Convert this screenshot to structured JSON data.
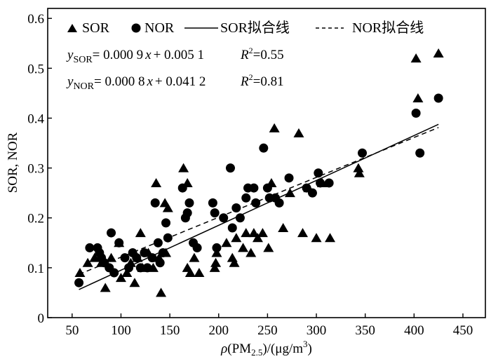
{
  "chart_data": {
    "type": "scatter",
    "title": "",
    "xlabel_parts": {
      "rho": "ρ",
      "open": "(PM",
      "sub": "2.5",
      "close": ")/(μg/m",
      "sup": "3",
      "end": ")"
    },
    "ylabel": "SOR, NOR",
    "xlim": [
      25,
      473
    ],
    "ylim": [
      0,
      0.62
    ],
    "x_ticks": [
      50,
      100,
      150,
      200,
      250,
      300,
      350,
      400,
      450
    ],
    "x_tick_labels": [
      "50",
      "100",
      "150",
      "200",
      "250",
      "300",
      "350",
      "400",
      "450"
    ],
    "y_ticks": [
      0,
      0.1,
      0.2,
      0.3,
      0.4,
      0.5,
      0.6
    ],
    "y_tick_labels": [
      "0",
      "0.1",
      "0.2",
      "0.3",
      "0.4",
      "0.5",
      "0.6"
    ],
    "grid": false,
    "legend": {
      "placement": "top",
      "entries": [
        {
          "label": "SOR",
          "marker": "triangle"
        },
        {
          "label": "NOR",
          "marker": "circle"
        },
        {
          "label": "SOR拟合线",
          "line": "solid"
        },
        {
          "label": "NOR拟合线",
          "line": "dashed"
        }
      ]
    },
    "annotations": [
      {
        "y": "y",
        "sub": "SOR",
        "rhs": "= 0.000 9",
        "x": "x",
        "tail": "+ 0.005 1",
        "r": "R",
        "r2sup": "2",
        "r2val": "=0.55"
      },
      {
        "y": "y",
        "sub": "NOR",
        "rhs": "= 0.000 8",
        "x": "x",
        "tail": "+ 0.041 2",
        "r": "R",
        "r2sup": "2",
        "r2val": "=0.81"
      }
    ],
    "series": [
      {
        "name": "SOR",
        "marker": "triangle",
        "points": [
          [
            58,
            0.09
          ],
          [
            66,
            0.11
          ],
          [
            73,
            0.12
          ],
          [
            80,
            0.11
          ],
          [
            84,
            0.06
          ],
          [
            90,
            0.12
          ],
          [
            98,
            0.15
          ],
          [
            100,
            0.08
          ],
          [
            106,
            0.09
          ],
          [
            110,
            0.11
          ],
          [
            114,
            0.07
          ],
          [
            117,
            0.12
          ],
          [
            120,
            0.17
          ],
          [
            122,
            0.1
          ],
          [
            128,
            0.13
          ],
          [
            133,
            0.1
          ],
          [
            136,
            0.27
          ],
          [
            139,
            0.12
          ],
          [
            141,
            0.05
          ],
          [
            145,
            0.23
          ],
          [
            148,
            0.22
          ],
          [
            146,
            0.13
          ],
          [
            164,
            0.3
          ],
          [
            168,
            0.27
          ],
          [
            168,
            0.1
          ],
          [
            171,
            0.09
          ],
          [
            175,
            0.12
          ],
          [
            180,
            0.09
          ],
          [
            196,
            0.1
          ],
          [
            197,
            0.11
          ],
          [
            198,
            0.13
          ],
          [
            208,
            0.15
          ],
          [
            214,
            0.12
          ],
          [
            216,
            0.11
          ],
          [
            218,
            0.16
          ],
          [
            225,
            0.14
          ],
          [
            228,
            0.17
          ],
          [
            233,
            0.13
          ],
          [
            236,
            0.17
          ],
          [
            240,
            0.16
          ],
          [
            245,
            0.17
          ],
          [
            251,
            0.14
          ],
          [
            254,
            0.27
          ],
          [
            257,
            0.38
          ],
          [
            266,
            0.18
          ],
          [
            273,
            0.25
          ],
          [
            282,
            0.37
          ],
          [
            286,
            0.17
          ],
          [
            292,
            0.26
          ],
          [
            300,
            0.16
          ],
          [
            306,
            0.27
          ],
          [
            314,
            0.16
          ],
          [
            343,
            0.3
          ],
          [
            344,
            0.29
          ],
          [
            402,
            0.52
          ],
          [
            404,
            0.44
          ],
          [
            425,
            0.53
          ]
        ]
      },
      {
        "name": "NOR",
        "marker": "circle",
        "points": [
          [
            57,
            0.07
          ],
          [
            68,
            0.14
          ],
          [
            76,
            0.14
          ],
          [
            78,
            0.13
          ],
          [
            80,
            0.12
          ],
          [
            83,
            0.11
          ],
          [
            88,
            0.1
          ],
          [
            90,
            0.17
          ],
          [
            93,
            0.09
          ],
          [
            98,
            0.15
          ],
          [
            104,
            0.12
          ],
          [
            108,
            0.1
          ],
          [
            112,
            0.13
          ],
          [
            116,
            0.12
          ],
          [
            120,
            0.1
          ],
          [
            124,
            0.13
          ],
          [
            127,
            0.1
          ],
          [
            132,
            0.12
          ],
          [
            135,
            0.23
          ],
          [
            138,
            0.15
          ],
          [
            140,
            0.11
          ],
          [
            143,
            0.13
          ],
          [
            146,
            0.19
          ],
          [
            148,
            0.16
          ],
          [
            163,
            0.26
          ],
          [
            166,
            0.2
          ],
          [
            168,
            0.21
          ],
          [
            170,
            0.23
          ],
          [
            174,
            0.15
          ],
          [
            178,
            0.14
          ],
          [
            194,
            0.23
          ],
          [
            196,
            0.21
          ],
          [
            198,
            0.14
          ],
          [
            205,
            0.2
          ],
          [
            212,
            0.3
          ],
          [
            214,
            0.18
          ],
          [
            218,
            0.22
          ],
          [
            222,
            0.2
          ],
          [
            228,
            0.24
          ],
          [
            230,
            0.26
          ],
          [
            236,
            0.26
          ],
          [
            238,
            0.23
          ],
          [
            246,
            0.34
          ],
          [
            250,
            0.26
          ],
          [
            252,
            0.24
          ],
          [
            258,
            0.24
          ],
          [
            262,
            0.23
          ],
          [
            272,
            0.28
          ],
          [
            290,
            0.26
          ],
          [
            296,
            0.25
          ],
          [
            302,
            0.29
          ],
          [
            304,
            0.27
          ],
          [
            313,
            0.27
          ],
          [
            347,
            0.33
          ],
          [
            402,
            0.41
          ],
          [
            406,
            0.33
          ],
          [
            425,
            0.44
          ]
        ]
      }
    ],
    "fit_lines": [
      {
        "name": "SOR拟合线",
        "style": "solid",
        "slope": 0.0009,
        "intercept": 0.0051,
        "x_range": [
          57,
          425
        ]
      },
      {
        "name": "NOR拟合线",
        "style": "dashed",
        "slope": 0.0008,
        "intercept": 0.0412,
        "x_range": [
          57,
          425
        ]
      }
    ]
  }
}
